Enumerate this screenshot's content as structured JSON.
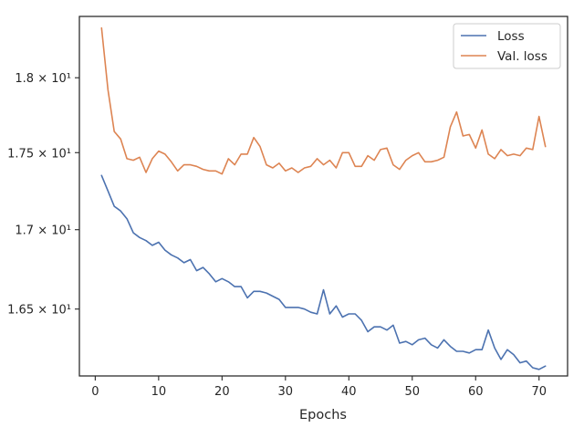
{
  "chart_data": {
    "type": "line",
    "title": "",
    "xlabel": "Epochs",
    "ylabel": "",
    "xlim": [
      -2.5,
      74.5
    ],
    "ylim": [
      16.09,
      18.42
    ],
    "y_scale": "log",
    "grid": false,
    "legend_position": "top-right",
    "x_ticks": [
      0,
      10,
      20,
      30,
      40,
      50,
      60,
      70
    ],
    "y_ticks": [
      {
        "value": 16.5,
        "label": "1.65 × 10¹"
      },
      {
        "value": 17.0,
        "label": "1.7 × 10¹"
      },
      {
        "value": 17.5,
        "label": "1.75 × 10¹"
      },
      {
        "value": 18.0,
        "label": "1.8 × 10¹"
      }
    ],
    "x": [
      1,
      2,
      3,
      4,
      5,
      6,
      7,
      8,
      9,
      10,
      11,
      12,
      13,
      14,
      15,
      16,
      17,
      18,
      19,
      20,
      21,
      22,
      23,
      24,
      25,
      26,
      27,
      28,
      29,
      30,
      31,
      32,
      33,
      34,
      35,
      36,
      37,
      38,
      39,
      40,
      41,
      42,
      43,
      44,
      45,
      46,
      47,
      48,
      49,
      50,
      51,
      52,
      53,
      54,
      55,
      56,
      57,
      58,
      59,
      60,
      61,
      62,
      63,
      64,
      65,
      66,
      67,
      68,
      69,
      70,
      71
    ],
    "series": [
      {
        "name": "Loss",
        "color": "#4c72b0",
        "values": [
          17.35,
          17.25,
          17.15,
          17.12,
          17.07,
          16.98,
          16.95,
          16.93,
          16.9,
          16.92,
          16.87,
          16.84,
          16.82,
          16.79,
          16.81,
          16.74,
          16.76,
          16.72,
          16.67,
          16.69,
          16.67,
          16.64,
          16.64,
          16.57,
          16.61,
          16.61,
          16.6,
          16.58,
          16.56,
          16.51,
          16.51,
          16.51,
          16.5,
          16.48,
          16.47,
          16.62,
          16.47,
          16.52,
          16.45,
          16.47,
          16.47,
          16.43,
          16.36,
          16.39,
          16.39,
          16.37,
          16.4,
          16.29,
          16.3,
          16.28,
          16.31,
          16.32,
          16.28,
          16.26,
          16.31,
          16.27,
          16.24,
          16.24,
          16.23,
          16.25,
          16.25,
          16.37,
          16.26,
          16.19,
          16.25,
          16.22,
          16.17,
          16.18,
          16.14,
          16.13,
          16.15
        ]
      },
      {
        "name": "Val. loss",
        "color": "#dd8452",
        "values": [
          18.34,
          17.92,
          17.64,
          17.59,
          17.46,
          17.45,
          17.47,
          17.37,
          17.46,
          17.51,
          17.49,
          17.44,
          17.38,
          17.42,
          17.42,
          17.41,
          17.39,
          17.38,
          17.38,
          17.36,
          17.46,
          17.42,
          17.49,
          17.49,
          17.6,
          17.54,
          17.42,
          17.4,
          17.43,
          17.38,
          17.4,
          17.37,
          17.4,
          17.41,
          17.46,
          17.42,
          17.45,
          17.4,
          17.5,
          17.5,
          17.41,
          17.41,
          17.48,
          17.45,
          17.52,
          17.53,
          17.42,
          17.39,
          17.45,
          17.48,
          17.5,
          17.44,
          17.44,
          17.45,
          17.47,
          17.67,
          17.77,
          17.61,
          17.62,
          17.53,
          17.65,
          17.49,
          17.46,
          17.52,
          17.48,
          17.49,
          17.48,
          17.53,
          17.52,
          17.74,
          17.54
        ]
      }
    ]
  }
}
